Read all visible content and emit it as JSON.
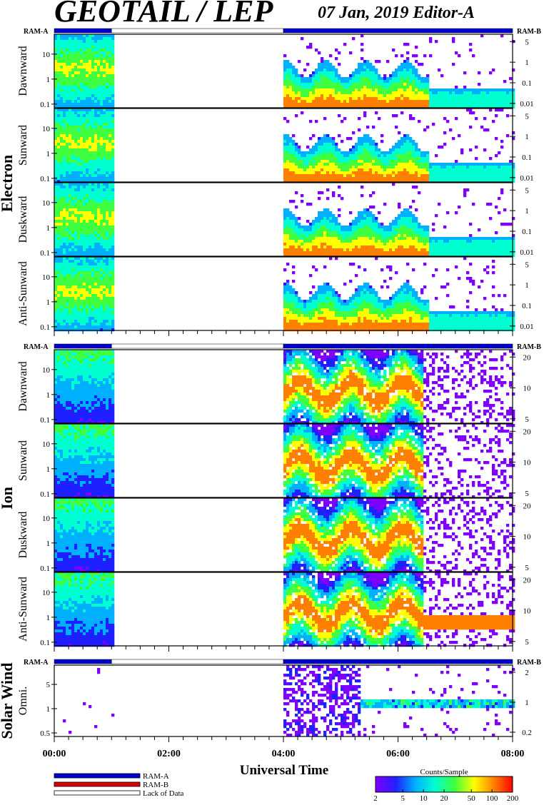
{
  "header": {
    "title": "GEOTAIL / LEP",
    "date_editor": "07 Jan, 2019   Editor-A"
  },
  "ram_labels": {
    "left": "RAM-A",
    "right": "RAM-B"
  },
  "chart_data": {
    "type": "heatmap",
    "x_axis": {
      "label": "Universal Time",
      "range_hours": [
        0,
        8
      ],
      "tick_labels": [
        "00:00",
        "02:00",
        "04:00",
        "06:00",
        "08:00"
      ]
    },
    "colorbar": {
      "label": "Counts/Sample",
      "scale": "log",
      "range": [
        2,
        200
      ],
      "tick_labels": [
        "2",
        "5",
        "10",
        "20",
        "50",
        "100",
        "200"
      ],
      "colors": [
        "#7f00ff",
        "#2020ff",
        "#00b0ff",
        "#00ffd0",
        "#40ff40",
        "#ffff00",
        "#ff8000",
        "#ff0000"
      ]
    },
    "ram_status_bar": {
      "legend": [
        {
          "label": "RAM-A",
          "color": "#0000cc"
        },
        {
          "label": "RAM-B",
          "color": "#dd0000"
        },
        {
          "label": "Lack of Data",
          "color": "#ffffff"
        }
      ],
      "intervals_hours": [
        {
          "start": 0.0,
          "end": 1.0,
          "state": "RAM-A"
        },
        {
          "start": 1.0,
          "end": 4.0,
          "state": "Lack of Data"
        },
        {
          "start": 4.0,
          "end": 8.0,
          "state": "RAM-A"
        }
      ]
    },
    "groups": [
      {
        "name": "Electron",
        "panels": [
          {
            "label": "Dawnward",
            "left_ticks": [
              "10",
              "1",
              "0.1"
            ],
            "right_ticks": [
              "5",
              "1",
              "0.1",
              "0.01"
            ]
          },
          {
            "label": "Sunward",
            "left_ticks": [
              "10",
              "1",
              "0.1"
            ],
            "right_ticks": [
              "5",
              "1",
              "0.1",
              "0.01"
            ]
          },
          {
            "label": "Duskward",
            "left_ticks": [
              "10",
              "1",
              "0.1"
            ],
            "right_ticks": [
              "5",
              "1",
              "0.1",
              "0.01"
            ]
          },
          {
            "label": "Anti-Sunward",
            "left_ticks": [
              "10",
              "1",
              "0.1"
            ],
            "right_ticks": [
              "5",
              "1",
              "0.1",
              "0.01"
            ]
          }
        ]
      },
      {
        "name": "Ion",
        "panels": [
          {
            "label": "Dawnward",
            "left_ticks": [
              "10",
              "1",
              "0.1"
            ],
            "right_ticks": [
              "20",
              "10",
              "5"
            ]
          },
          {
            "label": "Sunward",
            "left_ticks": [
              "10",
              "1",
              "0.1"
            ],
            "right_ticks": [
              "20",
              "10",
              "5"
            ]
          },
          {
            "label": "Duskward",
            "left_ticks": [
              "10",
              "1",
              "0.1"
            ],
            "right_ticks": [
              "20",
              "10",
              "5"
            ]
          },
          {
            "label": "Anti-Sunward",
            "left_ticks": [
              "10",
              "1",
              "0.1"
            ],
            "right_ticks": [
              "20",
              "10",
              "5"
            ]
          }
        ]
      },
      {
        "name": "Solar Wind",
        "panels": [
          {
            "label": "Omni.",
            "left_ticks": [
              "5",
              "1",
              "0.5"
            ],
            "right_ticks": [
              "2",
              "1",
              "0.2"
            ]
          }
        ]
      }
    ],
    "data_coverage_hours": [
      {
        "start": 0.0,
        "end": 1.0,
        "status": "data"
      },
      {
        "start": 1.0,
        "end": 4.0,
        "status": "no data"
      },
      {
        "start": 4.0,
        "end": 8.0,
        "status": "data"
      }
    ]
  }
}
